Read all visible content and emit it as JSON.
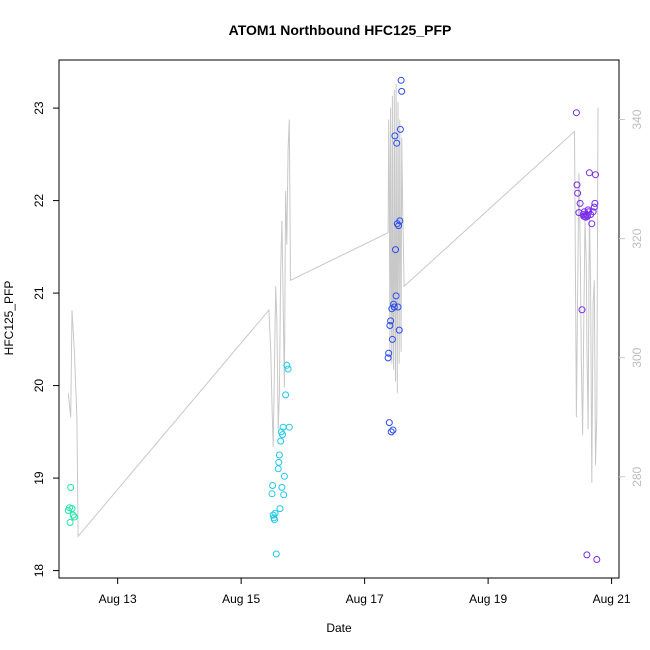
{
  "chart_data": {
    "type": "scatter",
    "title": "ATOM1 Northbound HFC125_PFP",
    "xlabel": "Date",
    "ylabel": "HFC125_PFP",
    "x_ticks": [
      "Aug 13",
      "Aug 15",
      "Aug 17",
      "Aug 19",
      "Aug 21"
    ],
    "x_tick_days": [
      13,
      15,
      17,
      19,
      21
    ],
    "xlim": [
      12.05,
      21.12
    ],
    "ylim": [
      17.92,
      23.52
    ],
    "y_ticks": [
      18,
      19,
      20,
      21,
      22,
      23
    ],
    "y2_ticks": [
      280,
      300,
      320,
      340
    ],
    "y2lim": [
      263,
      350
    ],
    "axis2_color": "#c8c8c8",
    "line_color": "#c8c8c8",
    "grid": false,
    "series": [
      {
        "color": "#1ee6a8",
        "points": [
          [
            12.2,
            18.65
          ],
          [
            12.22,
            18.68
          ],
          [
            12.23,
            18.52
          ],
          [
            12.24,
            18.9
          ],
          [
            12.26,
            18.67
          ],
          [
            12.28,
            18.6
          ],
          [
            12.3,
            18.58
          ]
        ]
      },
      {
        "color": "#1fc8ea",
        "points": [
          [
            15.5,
            18.83
          ],
          [
            15.51,
            18.92
          ],
          [
            15.52,
            18.6
          ],
          [
            15.53,
            18.57
          ],
          [
            15.54,
            18.55
          ],
          [
            15.55,
            18.62
          ],
          [
            15.57,
            18.18
          ],
          [
            15.6,
            19.1
          ],
          [
            15.61,
            19.17
          ],
          [
            15.62,
            19.25
          ],
          [
            15.63,
            18.67
          ],
          [
            15.64,
            19.4
          ],
          [
            15.65,
            19.5
          ],
          [
            15.66,
            18.9
          ],
          [
            15.67,
            19.47
          ],
          [
            15.68,
            19.55
          ],
          [
            15.69,
            18.82
          ],
          [
            15.7,
            19.02
          ],
          [
            15.72,
            19.9
          ],
          [
            15.74,
            20.22
          ],
          [
            15.76,
            20.18
          ],
          [
            15.78,
            19.55
          ]
        ]
      },
      {
        "color": "#2b4cf0",
        "points": [
          [
            17.38,
            20.3
          ],
          [
            17.39,
            20.35
          ],
          [
            17.4,
            19.6
          ],
          [
            17.41,
            20.65
          ],
          [
            17.42,
            20.7
          ],
          [
            17.43,
            19.5
          ],
          [
            17.44,
            20.83
          ],
          [
            17.45,
            20.5
          ],
          [
            17.46,
            19.52
          ],
          [
            17.47,
            20.88
          ],
          [
            17.48,
            20.85
          ],
          [
            17.49,
            22.7
          ],
          [
            17.5,
            21.47
          ],
          [
            17.51,
            20.97
          ],
          [
            17.52,
            22.62
          ],
          [
            17.53,
            21.75
          ],
          [
            17.54,
            20.85
          ],
          [
            17.55,
            21.73
          ],
          [
            17.56,
            20.6
          ],
          [
            17.57,
            21.78
          ],
          [
            17.58,
            22.77
          ],
          [
            17.59,
            23.3
          ],
          [
            17.6,
            23.18
          ]
        ]
      },
      {
        "color": "#7a2bea",
        "points": [
          [
            20.43,
            22.95
          ],
          [
            20.44,
            22.17
          ],
          [
            20.45,
            22.08
          ],
          [
            20.47,
            21.87
          ],
          [
            20.49,
            21.97
          ],
          [
            20.52,
            20.82
          ],
          [
            20.54,
            21.85
          ],
          [
            20.55,
            21.83
          ],
          [
            20.56,
            21.88
          ],
          [
            20.57,
            21.83
          ],
          [
            20.58,
            21.82
          ],
          [
            20.59,
            21.85
          ],
          [
            20.6,
            18.17
          ],
          [
            20.61,
            21.83
          ],
          [
            20.62,
            21.9
          ],
          [
            20.63,
            21.88
          ],
          [
            20.64,
            22.3
          ],
          [
            20.66,
            21.85
          ],
          [
            20.68,
            21.75
          ],
          [
            20.7,
            21.88
          ],
          [
            20.72,
            21.93
          ],
          [
            20.73,
            21.97
          ],
          [
            20.74,
            22.28
          ],
          [
            20.76,
            18.12
          ]
        ]
      }
    ],
    "line": [
      [
        12.2,
        294
      ],
      [
        12.24,
        290
      ],
      [
        12.26,
        308
      ],
      [
        12.3,
        301
      ],
      [
        12.34,
        290
      ],
      [
        12.36,
        270
      ],
      [
        15.45,
        308
      ],
      [
        15.48,
        301
      ],
      [
        15.5,
        292
      ],
      [
        15.52,
        285
      ],
      [
        15.54,
        299
      ],
      [
        15.56,
        312
      ],
      [
        15.58,
        306
      ],
      [
        15.6,
        288
      ],
      [
        15.62,
        294
      ],
      [
        15.64,
        315
      ],
      [
        15.66,
        323
      ],
      [
        15.68,
        310
      ],
      [
        15.7,
        295
      ],
      [
        15.72,
        328
      ],
      [
        15.74,
        319
      ],
      [
        15.76,
        335
      ],
      [
        15.78,
        340
      ],
      [
        15.8,
        313
      ],
      [
        17.38,
        321
      ],
      [
        17.39,
        340
      ],
      [
        17.4,
        330
      ],
      [
        17.41,
        300
      ],
      [
        17.42,
        342
      ],
      [
        17.43,
        312
      ],
      [
        17.44,
        299
      ],
      [
        17.45,
        344
      ],
      [
        17.46,
        306
      ],
      [
        17.47,
        298
      ],
      [
        17.48,
        345
      ],
      [
        17.49,
        310
      ],
      [
        17.5,
        296
      ],
      [
        17.51,
        346
      ],
      [
        17.52,
        314
      ],
      [
        17.53,
        294
      ],
      [
        17.54,
        343
      ],
      [
        17.55,
        318
      ],
      [
        17.56,
        299
      ],
      [
        17.57,
        340
      ],
      [
        17.58,
        320
      ],
      [
        17.59,
        301
      ],
      [
        17.6,
        337
      ],
      [
        17.62,
        323
      ],
      [
        17.64,
        312
      ],
      [
        20.4,
        338
      ],
      [
        20.43,
        290
      ],
      [
        20.45,
        310
      ],
      [
        20.47,
        331
      ],
      [
        20.49,
        320
      ],
      [
        20.51,
        300
      ],
      [
        20.53,
        287
      ],
      [
        20.55,
        306
      ],
      [
        20.57,
        323
      ],
      [
        20.59,
        316
      ],
      [
        20.6,
        302
      ],
      [
        20.62,
        288
      ],
      [
        20.64,
        325
      ],
      [
        20.66,
        312
      ],
      [
        20.68,
        279
      ],
      [
        20.7,
        309
      ],
      [
        20.72,
        313
      ],
      [
        20.74,
        282
      ],
      [
        20.76,
        290
      ],
      [
        20.78,
        342
      ]
    ]
  }
}
